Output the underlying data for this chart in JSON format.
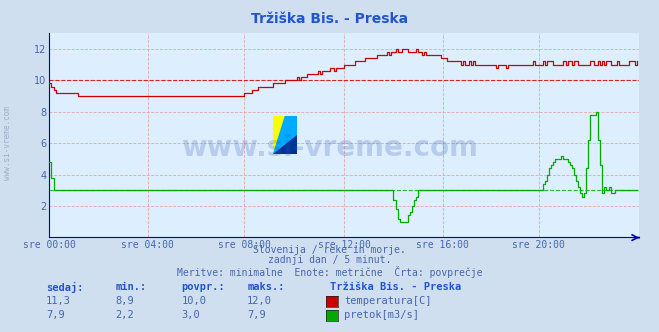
{
  "title": "Tržiška Bis. - Preska",
  "bg_color": "#d0dff0",
  "plot_bg_color": "#ddeeff",
  "title_color": "#2255cc",
  "text_color": "#4466aa",
  "header_color": "#2255cc",
  "watermark_text": "www.si-vreme.com",
  "watermark_color": "#3355aa",
  "watermark_alpha": 0.22,
  "watermark_fontsize": 22,
  "sidebar_text": "www.si-vreme.com",
  "subtitle1": "Slovenija / reke in morje.",
  "subtitle2": "zadnji dan / 5 minut.",
  "subtitle3": "Meritve: minimalne  Enote: metrične  Črta: povprečje",
  "legend_title": "Tržiška Bis. - Preska",
  "legend_items": [
    "temperatura[C]",
    "pretok[m3/s]"
  ],
  "legend_colors": [
    "#cc0000",
    "#00aa00"
  ],
  "stats_headers": [
    "sedaj:",
    "min.:",
    "povpr.:",
    "maks.:"
  ],
  "stats_temp": [
    "11,3",
    "8,9",
    "10,0",
    "12,0"
  ],
  "stats_flow": [
    "7,9",
    "2,2",
    "3,0",
    "7,9"
  ],
  "xticklabels": [
    "sre 00:00",
    "sre 04:00",
    "sre 08:00",
    "sre 12:00",
    "sre 16:00",
    "sre 20:00"
  ],
  "xtick_fracs": [
    0.0,
    0.1667,
    0.3333,
    0.5,
    0.6667,
    0.8333
  ],
  "ylim": [
    0,
    13
  ],
  "yticks": [
    2,
    4,
    6,
    8,
    10,
    12
  ],
  "ytick_labels": [
    "2",
    "4",
    "6",
    "8",
    "10",
    "12"
  ],
  "n_points": 288,
  "temp_avg": 10.0,
  "flow_avg": 3.0,
  "temp_color": "#cc0000",
  "flow_color": "#00aa00",
  "grid_color_h": "#ddaaaa",
  "grid_color_v": "#ddaaaa",
  "axis_color": "#0000bb",
  "logo_yellow": "#ffff00",
  "logo_blue": "#00aaff",
  "logo_darkblue": "#003399"
}
